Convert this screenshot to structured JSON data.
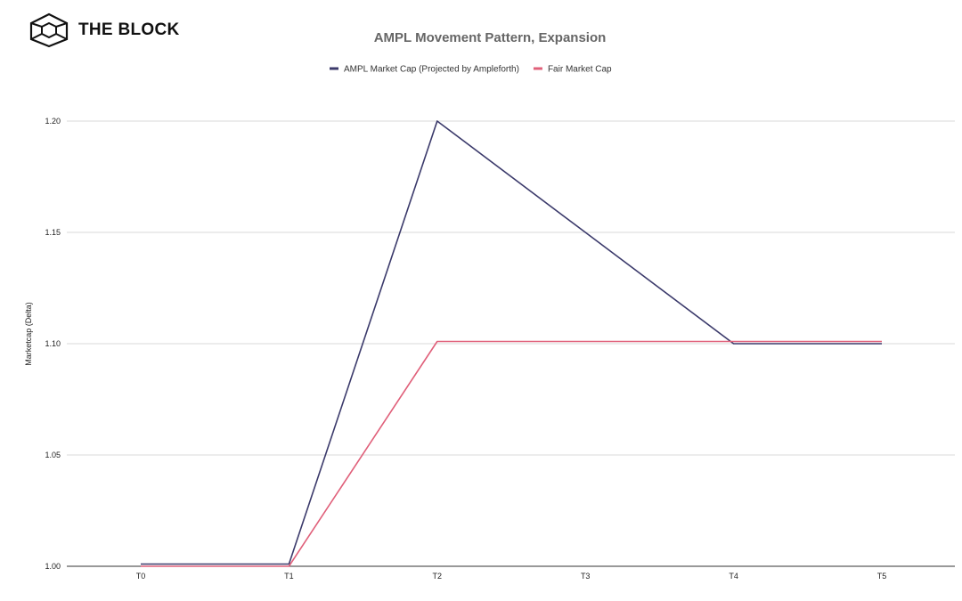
{
  "brand": {
    "name": "THE BLOCK",
    "icon": "cube-logo-icon"
  },
  "chart_data": {
    "type": "line",
    "title": "AMPL Movement Pattern, Expansion",
    "xlabel": "",
    "ylabel": "Marketcap (Delta)",
    "categories": [
      "T0",
      "T1",
      "T2",
      "T3",
      "T4",
      "T5"
    ],
    "series": [
      {
        "name": "AMPL Market Cap (Projected by Ampleforth)",
        "values": [
          1.001,
          1.001,
          1.2,
          1.15,
          1.1,
          1.1
        ],
        "color": "#3b3a6b"
      },
      {
        "name": "Fair Market Cap",
        "values": [
          1.0,
          1.0,
          1.101,
          1.101,
          1.101,
          1.101
        ],
        "color": "#e0607a"
      }
    ],
    "ylim": [
      1.0,
      1.2
    ],
    "yticks": [
      "1.00",
      "1.05",
      "1.10",
      "1.15",
      "1.20"
    ],
    "grid": true,
    "legend": "top-center"
  }
}
